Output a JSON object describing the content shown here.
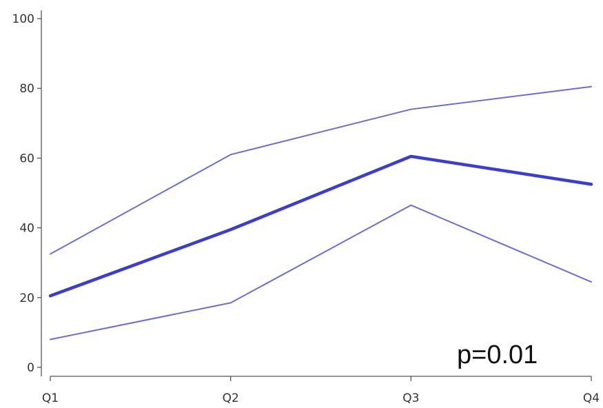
{
  "chart_data": {
    "type": "line",
    "title": "",
    "xlabel": "",
    "ylabel": "",
    "categories": [
      "Q1",
      "Q2",
      "Q3",
      "Q4"
    ],
    "ylim": [
      0,
      100
    ],
    "yticks": [
      "0",
      "20",
      "40",
      "60",
      "80",
      "100"
    ],
    "grid": false,
    "series": [
      {
        "values": [
          32.5,
          61,
          74,
          80.5
        ],
        "color": "#6b6bdc",
        "weight": "thin"
      },
      {
        "values": [
          20.5,
          39.5,
          60.5,
          52.5
        ],
        "color": "#3b3bd6",
        "weight": "thick"
      },
      {
        "values": [
          8,
          18.5,
          46.5,
          24.5
        ],
        "color": "#6b6bdc",
        "weight": "thin"
      }
    ],
    "annotation": "p=0.01"
  }
}
